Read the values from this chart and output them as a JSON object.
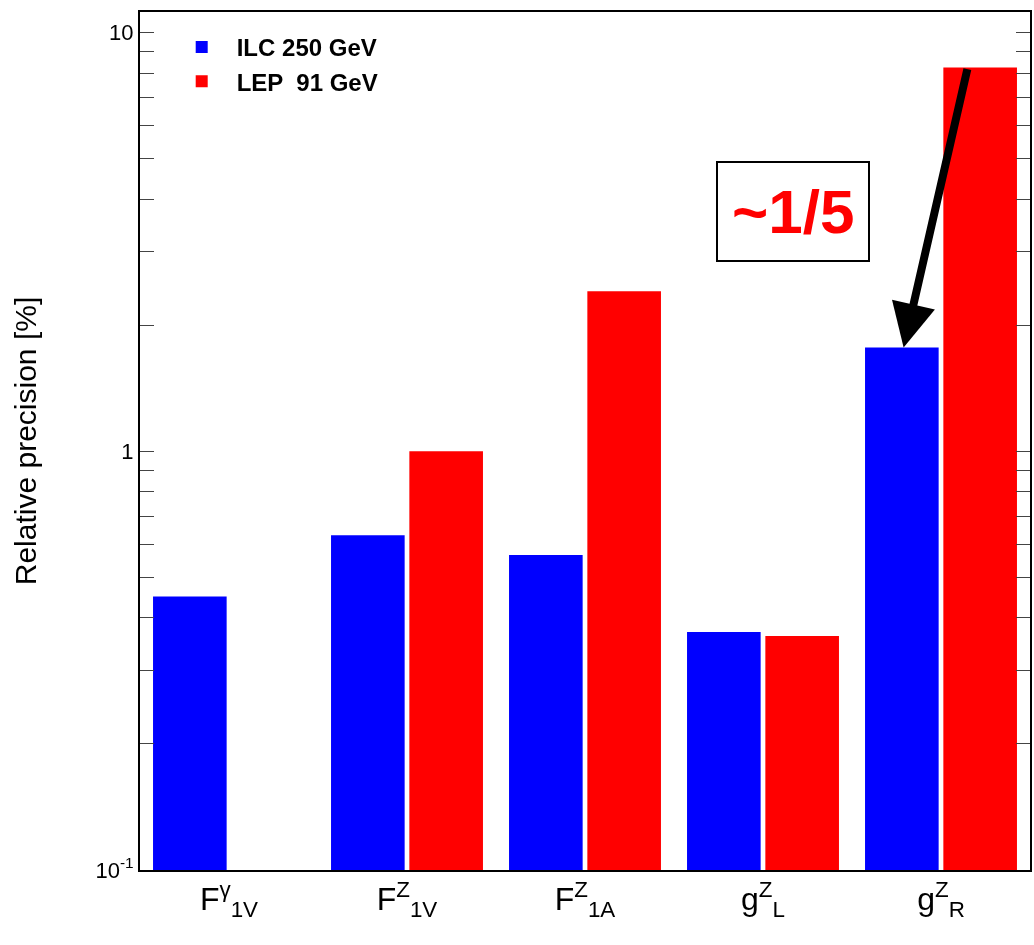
{
  "chart_data": {
    "type": "bar",
    "ylabel": "Relative precision [%]",
    "categories": [
      "F$^{γ}$$_{1V}$",
      "F$^{Z}$$_{1V}$",
      "F$^{Z}$$_{1A}$",
      "g$^{Z}$$_{L}$",
      "g$^{Z}$$_{R}$"
    ],
    "series": [
      {
        "name": "ILC 250 GeV",
        "color": "#0000ff",
        "values": [
          0.45,
          0.63,
          0.565,
          0.37,
          1.77
        ]
      },
      {
        "name": "LEP  91 GeV",
        "color": "#ff0000",
        "values": [
          null,
          1.0,
          2.41,
          0.362,
          8.25
        ]
      }
    ],
    "log": "y",
    "ylim": [
      0.1,
      11.2
    ],
    "yticks": [
      {
        "value": 0.1,
        "label": "10$^{-1}$"
      },
      {
        "value": 0.2,
        "label": null
      },
      {
        "value": 0.3,
        "label": null
      },
      {
        "value": 0.4,
        "label": null
      },
      {
        "value": 0.5,
        "label": null
      },
      {
        "value": 0.6,
        "label": null
      },
      {
        "value": 0.7,
        "label": null
      },
      {
        "value": 0.8,
        "label": null
      },
      {
        "value": 0.9,
        "label": null
      },
      1,
      {
        "value": 2,
        "label": null
      },
      {
        "value": 3,
        "label": null
      },
      {
        "value": 4,
        "label": null
      },
      {
        "value": 5,
        "label": null
      },
      {
        "value": 6,
        "label": null
      },
      {
        "value": 7,
        "label": null
      },
      {
        "value": 8,
        "label": null
      },
      {
        "value": 9,
        "label": null
      },
      10
    ],
    "annotations": [
      "~1/5"
    ],
    "grid": false,
    "legend": "top left"
  }
}
